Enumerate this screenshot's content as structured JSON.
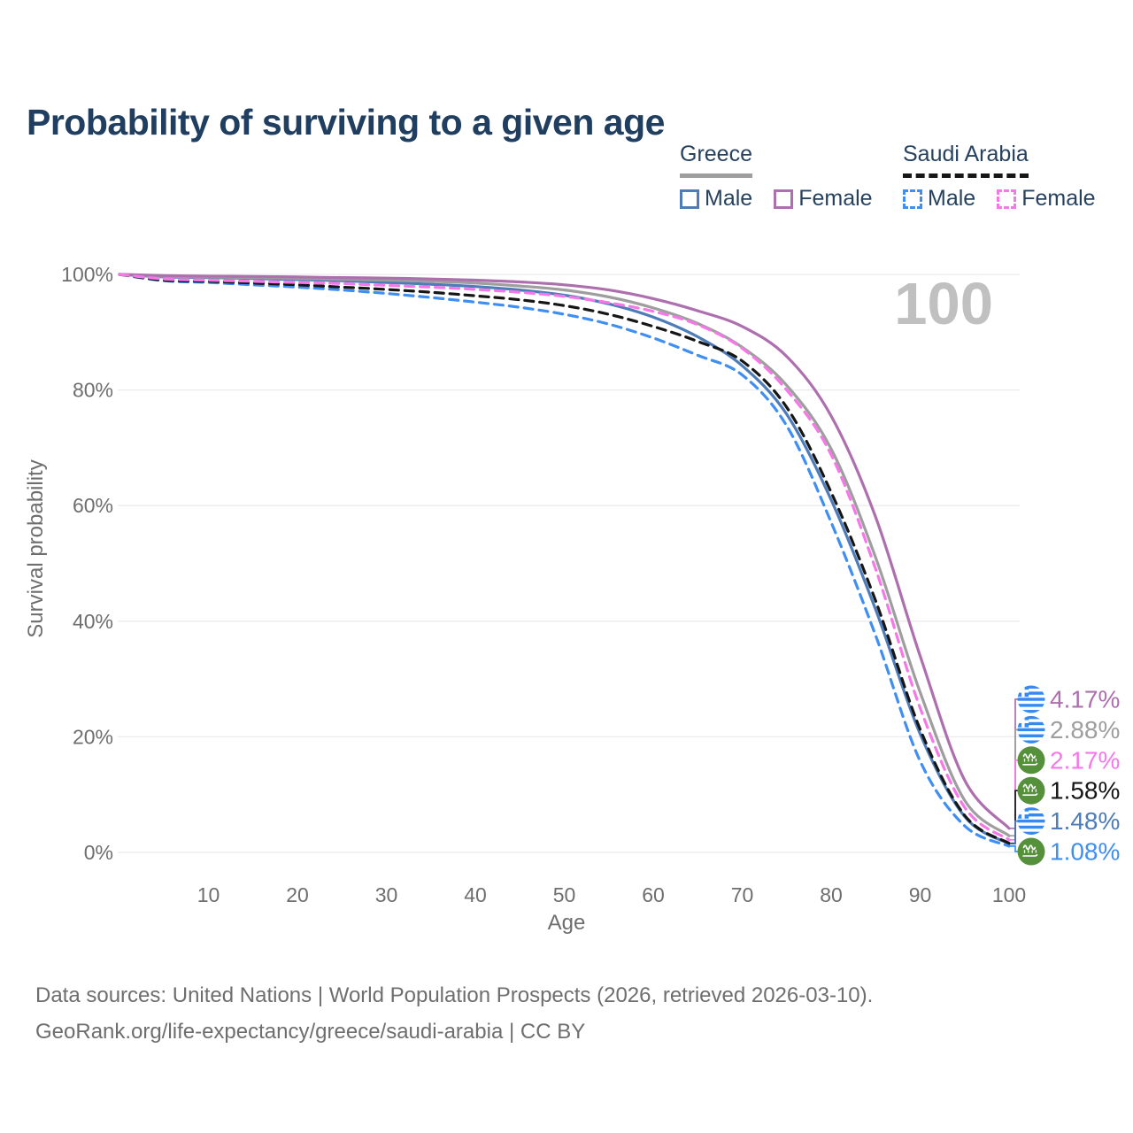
{
  "page_title": "Probability of surviving to a given age",
  "watermark_age": "100",
  "legend": {
    "greece": {
      "label": "Greece",
      "male_label": "Male",
      "female_label": "Female",
      "male_color": "#4d7cb8",
      "female_color": "#ad6fae",
      "underline_color": "#9e9e9e",
      "line_style": "solid"
    },
    "saudi_arabia": {
      "label": "Saudi Arabia",
      "male_label": "Male",
      "female_label": "Female",
      "male_color": "#3f8ef2",
      "female_color": "#f678e8",
      "underline_color": "#161616",
      "line_style": "dashed"
    }
  },
  "footer": {
    "line1": "Data sources: United Nations | World Population Prospects (2026, retrieved 2026-03-10).",
    "line2": "GeoRank.org/life-expectancy/greece/saudi-arabia | CC BY"
  },
  "chart_data": {
    "type": "line",
    "title": "Probability of surviving to a given age",
    "xlabel": "Age",
    "ylabel": "Survival probability",
    "xlim": [
      0,
      100
    ],
    "ylim": [
      0,
      100
    ],
    "x_ticks": [
      10,
      20,
      30,
      40,
      50,
      60,
      70,
      80,
      90,
      100
    ],
    "y_ticks_percent": [
      0,
      20,
      40,
      60,
      80,
      100
    ],
    "grid": "horizontal-only",
    "grid_color": "#ebebeb",
    "axis_text_color": "#6e6e6e",
    "watermark_text": "100",
    "watermark_color": "#c0c0c0",
    "x": [
      0,
      5,
      10,
      15,
      20,
      25,
      30,
      35,
      40,
      45,
      50,
      55,
      60,
      65,
      70,
      75,
      80,
      85,
      90,
      95,
      100
    ],
    "series": [
      {
        "id": "greece-male",
        "name": "Greece Male",
        "country": "Greece",
        "sex": "Male",
        "flag": "greece",
        "color": "#4d7cb8",
        "dash": "solid",
        "end_value": 1.48,
        "end_label": "1.48%",
        "values": [
          100,
          99.55,
          99.45,
          99.3,
          99.1,
          98.9,
          98.6,
          98.3,
          97.9,
          97.3,
          96.4,
          94.9,
          92.6,
          89.2,
          84.2,
          75.8,
          61.0,
          42.0,
          20.5,
          6.2,
          1.48
        ]
      },
      {
        "id": "greece-both",
        "name": "Greece Both sexes",
        "country": "Greece",
        "sex": "Both sexes",
        "flag": "greece",
        "color": "#9e9e9e",
        "dash": "solid",
        "end_value": 2.88,
        "end_label": "2.88%",
        "values": [
          100,
          99.65,
          99.55,
          99.45,
          99.3,
          99.15,
          99.0,
          98.8,
          98.5,
          98.0,
          97.3,
          96.1,
          94.2,
          91.5,
          87.4,
          80.8,
          69.8,
          51.0,
          27.7,
          9.0,
          2.88
        ]
      },
      {
        "id": "greece-female",
        "name": "Greece Female",
        "country": "Greece",
        "sex": "Female",
        "flag": "greece",
        "color": "#ad6fae",
        "dash": "solid",
        "end_value": 4.17,
        "end_label": "4.17%",
        "values": [
          100,
          99.8,
          99.7,
          99.65,
          99.55,
          99.45,
          99.35,
          99.2,
          99.0,
          98.7,
          98.2,
          97.3,
          95.8,
          93.7,
          91.0,
          85.8,
          75.5,
          58.0,
          34.0,
          12.5,
          4.17
        ]
      },
      {
        "id": "saudi-arabia-male",
        "name": "Saudi Arabia Male",
        "country": "Saudi Arabia",
        "sex": "Male",
        "flag": "saudi-arabia",
        "color": "#3f8ef2",
        "dash": "dashed",
        "end_value": 1.08,
        "end_label": "1.08%",
        "values": [
          100,
          98.9,
          98.6,
          98.2,
          97.8,
          97.3,
          96.7,
          96.0,
          95.2,
          94.3,
          93.1,
          91.4,
          89.0,
          86.0,
          82.6,
          73.8,
          57.1,
          37.5,
          15.8,
          4.6,
          1.08
        ]
      },
      {
        "id": "saudi-arabia-both",
        "name": "Saudi Arabia Both sexes",
        "country": "Saudi Arabia",
        "sex": "Both sexes",
        "flag": "saudi-arabia",
        "color": "#161616",
        "dash": "dashed",
        "end_value": 1.58,
        "end_label": "1.58%",
        "values": [
          100,
          99.0,
          98.8,
          98.5,
          98.2,
          97.8,
          97.4,
          96.9,
          96.3,
          95.6,
          94.6,
          93.1,
          91.0,
          88.4,
          85.0,
          77.0,
          62.3,
          43.5,
          21.3,
          6.4,
          1.58
        ]
      },
      {
        "id": "saudi-arabia-female",
        "name": "Saudi Arabia Female",
        "country": "Saudi Arabia",
        "sex": "Female",
        "flag": "saudi-arabia",
        "color": "#f678e8",
        "dash": "dashed",
        "end_value": 2.17,
        "end_label": "2.17%",
        "values": [
          100,
          99.2,
          99.0,
          98.8,
          98.6,
          98.4,
          98.1,
          97.8,
          97.4,
          96.9,
          96.2,
          95.1,
          93.6,
          91.3,
          87.2,
          80.0,
          68.8,
          49.0,
          25.0,
          7.8,
          2.17
        ]
      }
    ],
    "end_labels_top_to_bottom": [
      "4.17%",
      "2.88%",
      "2.17%",
      "1.58%",
      "1.48%",
      "1.08%"
    ],
    "flag_colors": {
      "greece_blue": "#338af3",
      "saudi_green": "#55903b",
      "white": "#ffffff"
    }
  }
}
